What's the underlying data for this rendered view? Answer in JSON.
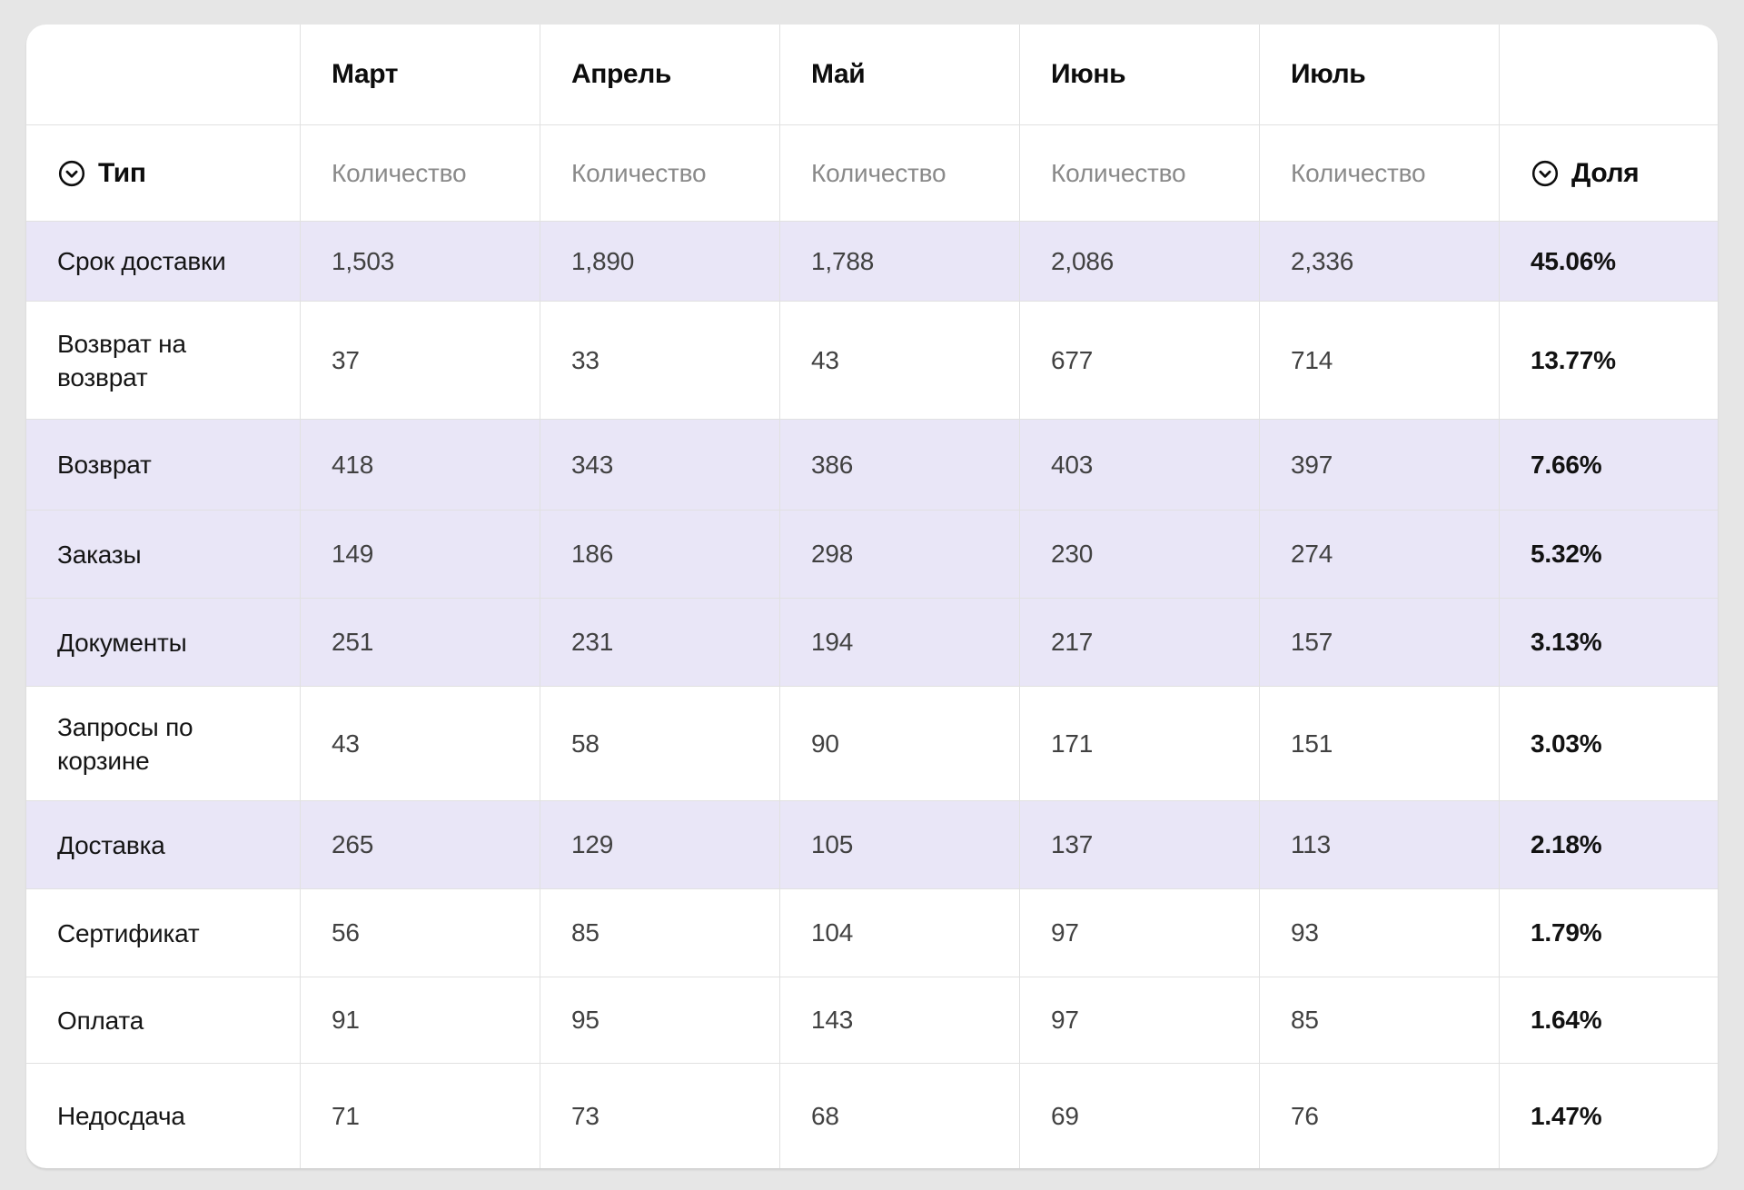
{
  "page": {
    "background_color": "#E6E6E6",
    "card_color": "#FFFFFF",
    "highlight_color": "#E9E6F7",
    "grid_line_color": "#E1E1E1"
  },
  "table": {
    "months": [
      "Март",
      "Апрель",
      "Май",
      "Июнь",
      "Июль"
    ],
    "type_header": "Тип",
    "count_header": "Количество",
    "share_header": "Доля",
    "rows": [
      {
        "type": "Срок доставки",
        "counts": [
          "1,503",
          "1,890",
          "1,788",
          "2,086",
          "2,336"
        ],
        "share": "45.06%",
        "highlighted": true
      },
      {
        "type": "Возврат на возврат",
        "counts": [
          "37",
          "33",
          "43",
          "677",
          "714"
        ],
        "share": "13.77%",
        "highlighted": false
      },
      {
        "type": "Возврат",
        "counts": [
          "418",
          "343",
          "386",
          "403",
          "397"
        ],
        "share": "7.66%",
        "highlighted": true
      },
      {
        "type": "Заказы",
        "counts": [
          "149",
          "186",
          "298",
          "230",
          "274"
        ],
        "share": "5.32%",
        "highlighted": true
      },
      {
        "type": "Документы",
        "counts": [
          "251",
          "231",
          "194",
          "217",
          "157"
        ],
        "share": "3.13%",
        "highlighted": true
      },
      {
        "type": "Запросы по корзине",
        "counts": [
          "43",
          "58",
          "90",
          "171",
          "151"
        ],
        "share": "3.03%",
        "highlighted": false
      },
      {
        "type": "Доставка",
        "counts": [
          "265",
          "129",
          "105",
          "137",
          "113"
        ],
        "share": "2.18%",
        "highlighted": true
      },
      {
        "type": "Сертификат",
        "counts": [
          "56",
          "85",
          "104",
          "97",
          "93"
        ],
        "share": "1.79%",
        "highlighted": false
      },
      {
        "type": "Оплата",
        "counts": [
          "91",
          "95",
          "143",
          "97",
          "85"
        ],
        "share": "1.64%",
        "highlighted": false
      },
      {
        "type": "Недосдача",
        "counts": [
          "71",
          "73",
          "68",
          "69",
          "76"
        ],
        "share": "1.47%",
        "highlighted": false
      }
    ]
  }
}
